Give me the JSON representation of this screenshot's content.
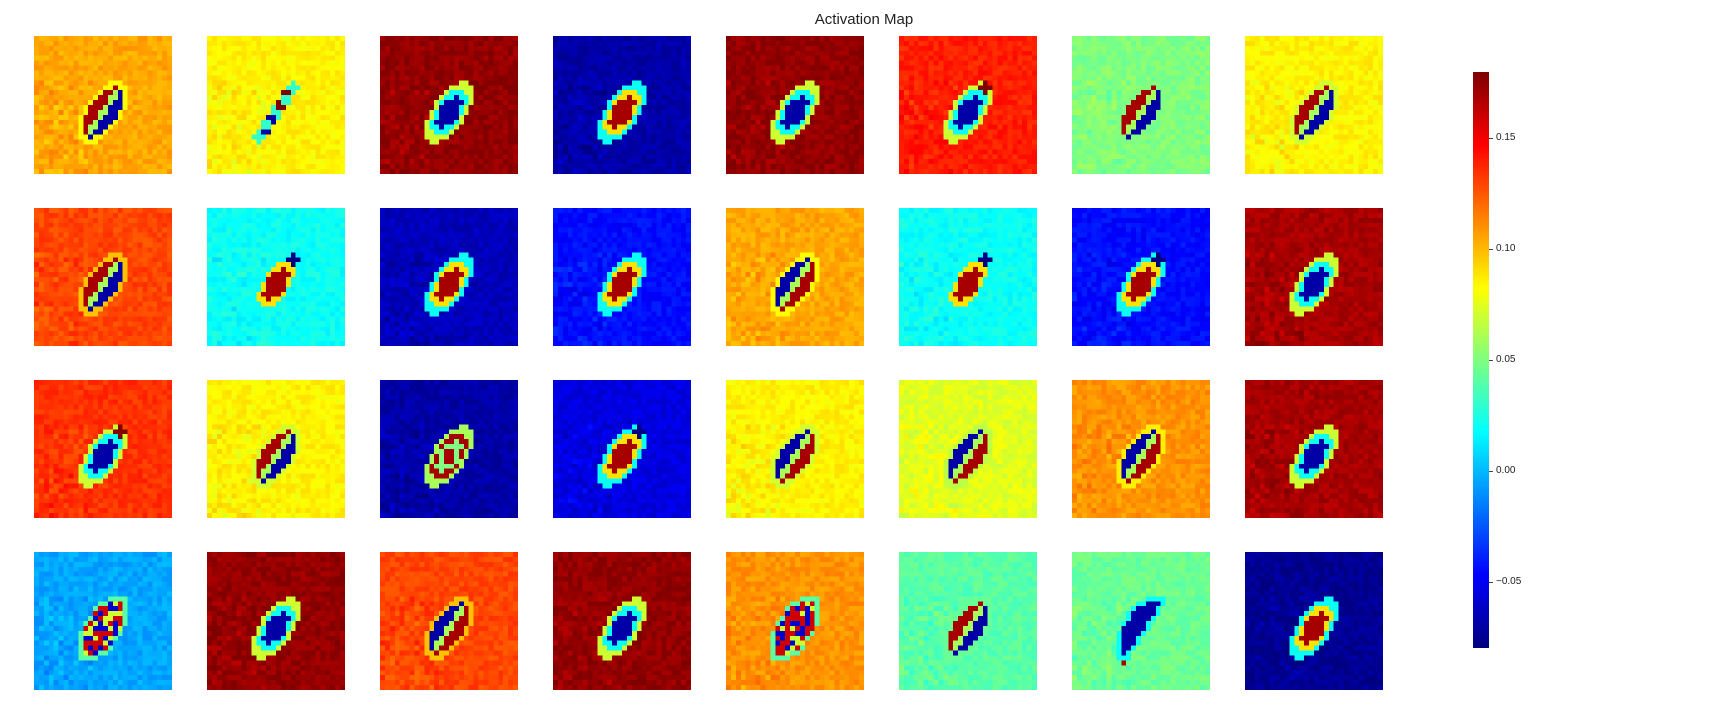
{
  "chart_data": {
    "type": "heatmap",
    "title": "Activation Map",
    "layout": "grid of 4 rows x 8 columns of feature-map tiles",
    "grid": false,
    "colormap": "jet",
    "colorbar": {
      "placement": "right",
      "range": [
        -0.08,
        0.18
      ],
      "ticks": [
        0.15,
        0.1,
        0.05,
        0.0,
        -0.05
      ],
      "tick_labels": [
        "0.15",
        "0.10",
        "0.05",
        "0.00",
        "−0.05"
      ]
    },
    "tiles": [
      {
        "bg": 0.105,
        "pattern": "stripes_pos_neg"
      },
      {
        "bg": 0.085,
        "pattern": "dots_diag"
      },
      {
        "bg": 0.175,
        "pattern": "ring_neg"
      },
      {
        "bg": -0.07,
        "pattern": "ring_pos"
      },
      {
        "bg": 0.175,
        "pattern": "ring_neg"
      },
      {
        "bg": 0.14,
        "pattern": "ring_neg_dark"
      },
      {
        "bg": 0.05,
        "pattern": "stripes_pos_neg"
      },
      {
        "bg": 0.085,
        "pattern": "stripes_pos_neg"
      },
      {
        "bg": 0.13,
        "pattern": "stripes_pos_neg"
      },
      {
        "bg": 0.02,
        "pattern": "ring_pos_dark"
      },
      {
        "bg": -0.065,
        "pattern": "ring_pos"
      },
      {
        "bg": -0.045,
        "pattern": "ring_pos"
      },
      {
        "bg": 0.105,
        "pattern": "stripes_neg_pos"
      },
      {
        "bg": 0.02,
        "pattern": "ring_pos_dark"
      },
      {
        "bg": -0.045,
        "pattern": "ring_pos_dark"
      },
      {
        "bg": 0.17,
        "pattern": "ring_neg"
      },
      {
        "bg": 0.135,
        "pattern": "ring_neg_dark"
      },
      {
        "bg": 0.085,
        "pattern": "stripes_pos_neg"
      },
      {
        "bg": -0.07,
        "pattern": "double_ring"
      },
      {
        "bg": -0.055,
        "pattern": "ring_pos_dark"
      },
      {
        "bg": 0.085,
        "pattern": "stripes_neg_pos"
      },
      {
        "bg": 0.075,
        "pattern": "stripes_neg_pos"
      },
      {
        "bg": 0.11,
        "pattern": "stripes_neg_pos"
      },
      {
        "bg": 0.17,
        "pattern": "ring_neg"
      },
      {
        "bg": -0.005,
        "pattern": "mixed"
      },
      {
        "bg": 0.175,
        "pattern": "ring_neg"
      },
      {
        "bg": 0.13,
        "pattern": "stripes_neg_pos"
      },
      {
        "bg": 0.175,
        "pattern": "ring_neg"
      },
      {
        "bg": 0.11,
        "pattern": "mixed"
      },
      {
        "bg": 0.04,
        "pattern": "stripes_pos_neg"
      },
      {
        "bg": 0.045,
        "pattern": "hook_neg"
      },
      {
        "bg": -0.075,
        "pattern": "ring_pos"
      }
    ]
  }
}
